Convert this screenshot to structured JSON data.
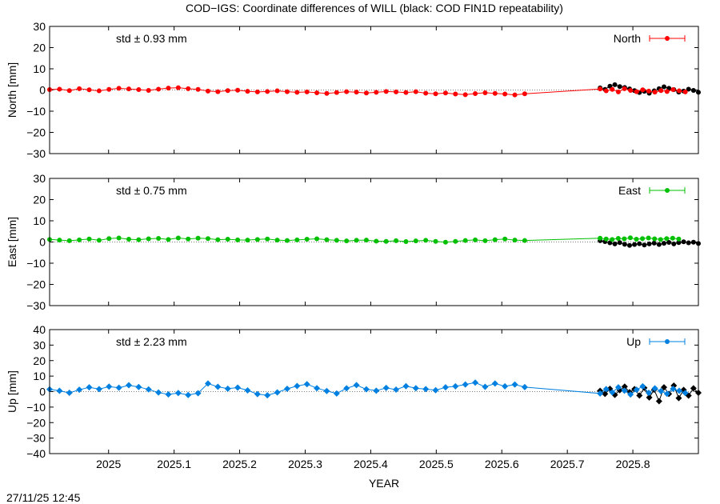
{
  "title": "COD−IGS: Coordinate differences of WILL (black: COD FIN1D repeatability)",
  "timestamp": "27/11/25 12:45",
  "chart_data": {
    "type": "scatter",
    "x_label": "YEAR",
    "x_range": [
      2024.91,
      2025.9
    ],
    "x_ticks": [
      {
        "value": 2025.0,
        "label": "2025"
      },
      {
        "value": 2025.1,
        "label": "2025.1"
      },
      {
        "value": 2025.2,
        "label": "2025.2"
      },
      {
        "value": 2025.3,
        "label": "2025.3"
      },
      {
        "value": 2025.4,
        "label": "2025.4"
      },
      {
        "value": 2025.5,
        "label": "2025.5"
      },
      {
        "value": 2025.6,
        "label": "2025.6"
      },
      {
        "value": 2025.7,
        "label": "2025.7"
      },
      {
        "value": 2025.8,
        "label": "2025.8"
      }
    ],
    "panels": [
      {
        "ylabel": "North [mm]",
        "yrange": [
          -30,
          30
        ],
        "yticks": [
          "30",
          "20",
          "10",
          "0",
          "−10",
          "−20",
          "−30"
        ],
        "ytick_values": [
          30,
          20,
          10,
          0,
          -10,
          -20,
          -30
        ],
        "legend": "North",
        "std_text": "std ± 0.93 mm",
        "color": "#ff0000",
        "marker": "circle",
        "series_x_range": [
          2024.91,
          2025.635
        ],
        "series_values": [
          0.2,
          0.4,
          -0.3,
          0.6,
          0.1,
          -0.4,
          0.3,
          0.8,
          0.5,
          0.2,
          -0.2,
          0.4,
          0.9,
          1.1,
          0.6,
          0.3,
          -0.5,
          -0.8,
          -0.3,
          -0.1,
          -0.6,
          -0.9,
          -0.7,
          -0.4,
          -0.8,
          -1.1,
          -0.9,
          -1.3,
          -1.6,
          -1.2,
          -0.8,
          -1.0,
          -1.4,
          -1.1,
          -0.7,
          -0.9,
          -1.2,
          -0.8,
          -1.5,
          -1.8,
          -1.4,
          -1.9,
          -2.2,
          -1.7,
          -1.3,
          -1.6,
          -1.9,
          -2.3,
          -1.8
        ],
        "tail_series_x_range": [
          2025.75,
          2025.88
        ],
        "tail_series_values": [
          0.5,
          -0.4,
          0.3,
          -0.9,
          0.6,
          -0.2,
          -0.8,
          0.1,
          -0.5,
          -1.0,
          -0.3,
          -0.7,
          0.2,
          -0.4,
          -0.9
        ],
        "repeat_x_range": [
          2025.75,
          2025.9
        ],
        "repeat_values": [
          1.0,
          0.3,
          1.8,
          2.5,
          1.6,
          1.2,
          0.5,
          -0.3,
          -1.2,
          -0.6,
          -1.5,
          -0.4,
          0.6,
          1.5,
          0.8,
          0.2,
          -1.0,
          -0.5,
          0.4,
          -0.2,
          -1.1
        ]
      },
      {
        "ylabel": "East [mm]",
        "yrange": [
          -30,
          30
        ],
        "yticks": [
          "30",
          "20",
          "10",
          "0",
          "−10",
          "−20",
          "−30"
        ],
        "ytick_values": [
          30,
          20,
          10,
          0,
          -10,
          -20,
          -30
        ],
        "legend": "East",
        "std_text": "std ± 0.75 mm",
        "color": "#00c000",
        "marker": "circle",
        "series_x_range": [
          2024.91,
          2025.635
        ],
        "series_values": [
          1.2,
          0.9,
          0.6,
          1.0,
          1.4,
          0.8,
          1.6,
          1.9,
          1.3,
          1.1,
          1.5,
          1.7,
          1.2,
          1.9,
          1.4,
          1.8,
          1.6,
          1.1,
          1.3,
          1.0,
          0.9,
          1.2,
          1.4,
          0.9,
          0.7,
          1.0,
          1.3,
          1.5,
          1.1,
          0.8,
          0.5,
          0.8,
          0.9,
          0.4,
          0.3,
          0.6,
          0.2,
          0.5,
          0.8,
          0.3,
          -0.1,
          0.3,
          0.7,
          1.0,
          0.6,
          1.1,
          1.4,
          0.9,
          0.7
        ],
        "tail_series_x_range": [
          2025.75,
          2025.87
        ],
        "tail_series_values": [
          1.8,
          1.4,
          1.2,
          1.7,
          1.5,
          2.0,
          1.3,
          1.6,
          1.9,
          1.5,
          1.2,
          1.6,
          1.8,
          1.4
        ],
        "repeat_x_range": [
          2025.75,
          2025.9
        ],
        "repeat_values": [
          0.6,
          0.2,
          -0.4,
          -0.9,
          -0.3,
          -1.1,
          -1.6,
          -1.2,
          -0.8,
          -1.4,
          -0.9,
          -0.5,
          -1.2,
          -0.6,
          -0.2,
          -0.9,
          -0.3,
          0.1,
          -0.4,
          -0.1,
          -0.7
        ]
      },
      {
        "ylabel": "Up [mm]",
        "yrange": [
          -40,
          40
        ],
        "yticks": [
          "40",
          "30",
          "20",
          "10",
          "0",
          "−10",
          "−20",
          "−30",
          "−40"
        ],
        "ytick_values": [
          40,
          30,
          20,
          10,
          0,
          -10,
          -20,
          -30,
          -40
        ],
        "legend": "Up",
        "std_text": "std ± 2.23 mm",
        "color": "#0080e0",
        "marker": "diamond",
        "series_x_range": [
          2024.91,
          2025.635
        ],
        "series_values": [
          1.5,
          0.5,
          -0.8,
          1.2,
          2.8,
          1.6,
          3.2,
          2.5,
          4.1,
          3.0,
          1.4,
          -0.6,
          -1.8,
          -0.9,
          -2.2,
          -1.0,
          5.2,
          3.1,
          1.9,
          2.6,
          0.8,
          -1.6,
          -2.4,
          -0.5,
          1.8,
          3.6,
          4.8,
          2.2,
          0.4,
          -1.2,
          2.1,
          4.2,
          1.5,
          0.6,
          2.4,
          1.3,
          3.5,
          2.2,
          1.6,
          0.9,
          2.8,
          3.4,
          4.6,
          5.8,
          3.1,
          5.2,
          3.4,
          4.6,
          2.9
        ],
        "tail_series_x_range": [
          2025.75,
          2025.88
        ],
        "tail_series_values": [
          -1.2,
          1.6,
          -0.5,
          2.8,
          0.6,
          -1.9,
          1.2,
          3.4,
          -0.8,
          2.1,
          0.3,
          -1.4,
          1.8,
          0.5,
          -0.9
        ],
        "repeat_x_range": [
          2025.75,
          2025.9
        ],
        "repeat_values": [
          0.5,
          -1.5,
          1.8,
          -2.1,
          0.9,
          3.2,
          -0.4,
          1.6,
          -2.5,
          2.4,
          -3.8,
          1.2,
          -6.2,
          2.8,
          -1.5,
          3.9,
          -4.2,
          1.1,
          -2.6,
          2.1,
          -0.8
        ]
      }
    ]
  }
}
